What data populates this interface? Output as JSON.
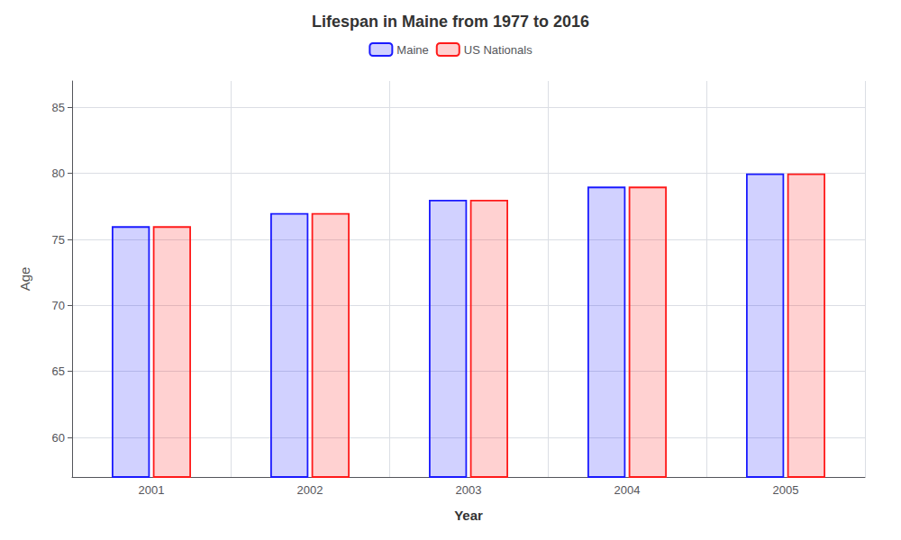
{
  "chart_data": {
    "type": "bar",
    "title": "Lifespan in Maine from 1977 to 2016",
    "x_label": "Year",
    "y_label": "Age",
    "categories": [
      "2001",
      "2002",
      "2003",
      "2004",
      "2005"
    ],
    "series": [
      {
        "name": "Maine",
        "color": "#1a1aff",
        "values": [
          76.0,
          77.0,
          78.0,
          79.0,
          80.0
        ]
      },
      {
        "name": "US Nationals",
        "color": "#ff1a1a",
        "values": [
          76.0,
          77.0,
          78.0,
          79.0,
          80.0
        ]
      }
    ],
    "ylim": [
      57,
      87
    ],
    "yticks": [
      60,
      65,
      70,
      75,
      80,
      85
    ],
    "grid": true,
    "legend": "top"
  }
}
